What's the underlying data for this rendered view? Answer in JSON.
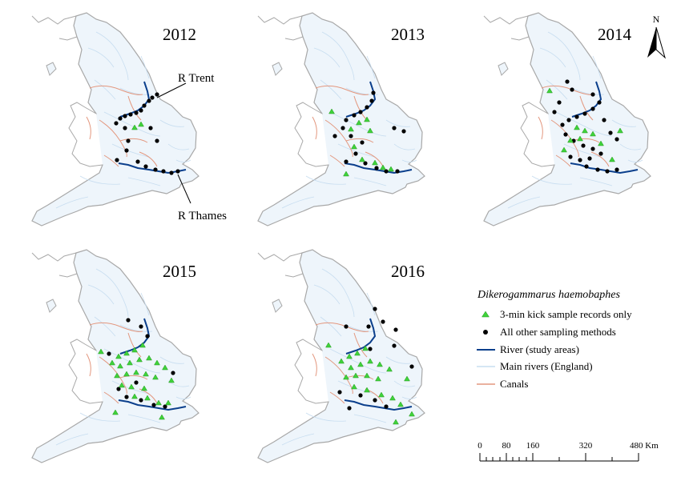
{
  "panels": [
    {
      "year": "2012"
    },
    {
      "year": "2013"
    },
    {
      "year": "2014"
    },
    {
      "year": "2015"
    },
    {
      "year": "2016"
    }
  ],
  "callouts": {
    "trent": "R Trent",
    "thames": "R Thames"
  },
  "north_arrow": "N",
  "legend": {
    "title": "Dikerogammarus haemobaphes",
    "items": [
      {
        "label": "3-min kick sample records only",
        "symbol": "triangle",
        "color": "#3fd23a"
      },
      {
        "label": "All other sampling methods",
        "symbol": "dot",
        "color": "#000000"
      },
      {
        "label": "River (study areas)",
        "symbol": "line",
        "color": "#0b3f8c"
      },
      {
        "label": "Main rivers (England)",
        "symbol": "line",
        "color": "#cfe3f5"
      },
      {
        "label": "Canals",
        "symbol": "line",
        "color": "#e3977e"
      }
    ]
  },
  "scale_bar": {
    "ticks": [
      "0",
      "80",
      "160",
      "320",
      "480 Km"
    ]
  },
  "colors": {
    "land": "#eef5fb",
    "coast": "#a8a8a8",
    "river_minor": "#c7ddf0",
    "canal": "#e3977e",
    "river_study": "#0b3f8c",
    "kick_triangle": "#3fd23a",
    "other_dot": "#000000"
  }
}
